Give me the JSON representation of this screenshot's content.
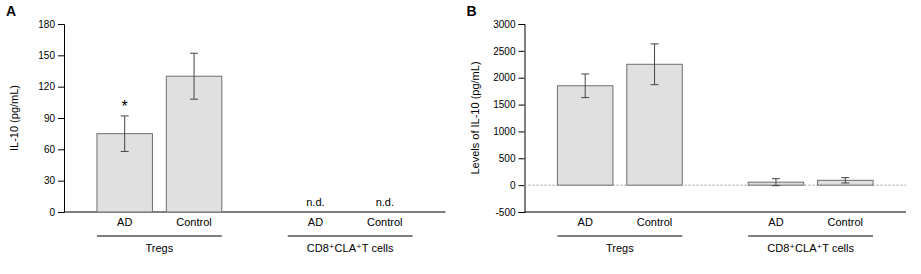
{
  "chart_data": [
    {
      "type": "bar",
      "title": "A",
      "ylabel": "IL-10 (pg/mL)",
      "color": "#e0e0e0",
      "ylim": [
        0,
        180
      ],
      "yticks": [
        0,
        30,
        60,
        90,
        120,
        150,
        180
      ],
      "groups": [
        {
          "label": "Tregs",
          "categories": [
            "AD",
            "Control"
          ],
          "values": [
            75,
            130
          ],
          "errors": [
            17,
            22
          ],
          "annotations": [
            {
              "text": "*",
              "category": "AD"
            }
          ]
        },
        {
          "label": "CD8⁺CLA⁺T cells",
          "categories": [
            "AD",
            "Control"
          ],
          "values": [
            null,
            null
          ],
          "errors": [
            null,
            null
          ],
          "annotations": [
            {
              "text": "n.d.",
              "category": "AD"
            },
            {
              "text": "n.d.",
              "category": "Control"
            }
          ]
        }
      ]
    },
    {
      "type": "bar",
      "title": "B",
      "ylabel": "Levels of IL-10 (pg/mL)",
      "color": "#e0e0e0",
      "ylim": [
        -500,
        3000
      ],
      "yticks": [
        -500,
        0,
        500,
        1000,
        1500,
        2000,
        2500,
        3000
      ],
      "groups": [
        {
          "label": "Tregs",
          "categories": [
            "AD",
            "Control"
          ],
          "values": [
            1850,
            2250
          ],
          "errors": [
            220,
            380
          ]
        },
        {
          "label": "CD8⁺CLA⁺T cells",
          "categories": [
            "AD",
            "Control"
          ],
          "values": [
            55,
            90
          ],
          "errors": [
            65,
            50
          ]
        }
      ]
    }
  ]
}
